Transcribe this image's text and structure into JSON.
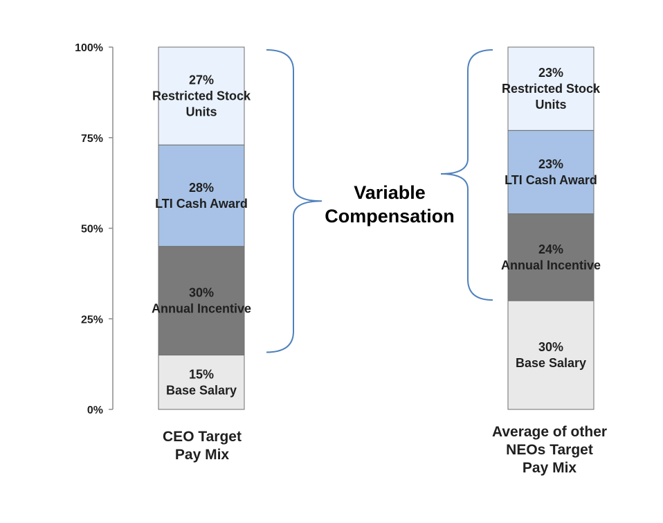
{
  "chart_data": {
    "type": "bar",
    "stacked": true,
    "categories": [
      [
        "CEO Target",
        "Pay Mix"
      ],
      [
        "Average of other",
        "NEOs Target",
        "Pay Mix"
      ]
    ],
    "series": [
      {
        "name": "Base Salary",
        "values": [
          15,
          30
        ],
        "color": "#e9e9e9"
      },
      {
        "name": "Annual Incentive",
        "values": [
          30,
          24
        ],
        "color": "#7a7a7a"
      },
      {
        "name": "LTI Cash Award",
        "values": [
          28,
          23
        ],
        "color": "#a7c2e6"
      },
      {
        "name": "Restricted Stock Units",
        "values": [
          27,
          23
        ],
        "color": "#eaf2fd"
      }
    ],
    "segment_labels": [
      [
        [
          "15%",
          "Base Salary"
        ],
        [
          "30%",
          "Annual Incentive"
        ],
        [
          "28%",
          "LTI Cash Award"
        ],
        [
          "27%",
          "Restricted Stock",
          "Units"
        ]
      ],
      [
        [
          "30%",
          "Base Salary"
        ],
        [
          "24%",
          "Annual Incentive"
        ],
        [
          "23%",
          "LTI Cash Award"
        ],
        [
          "23%",
          "Restricted Stock",
          "Units"
        ]
      ]
    ],
    "yticks": [
      0,
      25,
      50,
      75,
      100
    ],
    "ytick_labels": [
      "0%",
      "25%",
      "50%",
      "75%",
      "100%"
    ],
    "ylim": [
      0,
      100
    ],
    "grid": false,
    "annotation": {
      "lines": [
        "Variable",
        "Compensation"
      ],
      "brace_color": "#4f81bd",
      "spans": [
        [
          15,
          100
        ],
        [
          30,
          100
        ]
      ]
    }
  }
}
